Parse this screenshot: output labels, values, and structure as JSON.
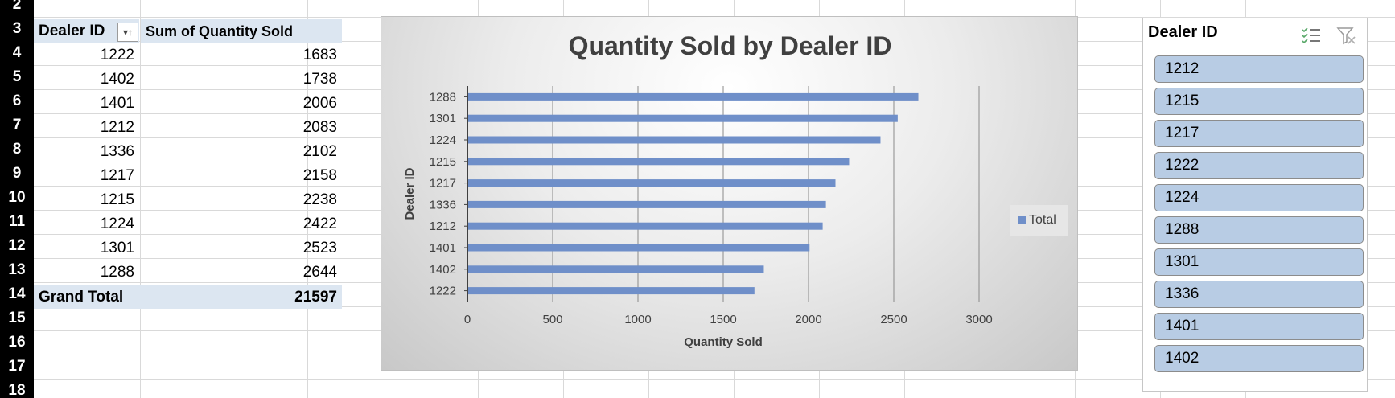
{
  "rows": [
    "2",
    "3",
    "4",
    "5",
    "6",
    "7",
    "8",
    "9",
    "10",
    "11",
    "12",
    "13",
    "14",
    "15",
    "16",
    "17",
    "18"
  ],
  "pivot": {
    "header_row_label": "Dealer ID",
    "header_value": "Sum of Quantity Sold",
    "rows": [
      {
        "dealer": "1222",
        "qty": "1683"
      },
      {
        "dealer": "1402",
        "qty": "1738"
      },
      {
        "dealer": "1401",
        "qty": "2006"
      },
      {
        "dealer": "1212",
        "qty": "2083"
      },
      {
        "dealer": "1336",
        "qty": "2102"
      },
      {
        "dealer": "1217",
        "qty": "2158"
      },
      {
        "dealer": "1215",
        "qty": "2238"
      },
      {
        "dealer": "1224",
        "qty": "2422"
      },
      {
        "dealer": "1301",
        "qty": "2523"
      },
      {
        "dealer": "1288",
        "qty": "2644"
      }
    ],
    "grand_total_label": "Grand Total",
    "grand_total_value": "21597"
  },
  "chart_data": {
    "type": "bar",
    "orientation": "horizontal",
    "title": "Quantity Sold by Dealer ID",
    "xlabel": "Quantity Sold",
    "ylabel": "Dealer ID",
    "categories": [
      "1288",
      "1301",
      "1224",
      "1215",
      "1217",
      "1336",
      "1212",
      "1401",
      "1402",
      "1222"
    ],
    "series": [
      {
        "name": "Total",
        "values": [
          2644,
          2523,
          2422,
          2238,
          2158,
          2102,
          2083,
          2006,
          1738,
          1683
        ]
      }
    ],
    "xlim": [
      0,
      3000
    ],
    "xticks": [
      "0",
      "500",
      "1000",
      "1500",
      "2000",
      "2500",
      "3000"
    ],
    "grid": "vertical",
    "legend": "right",
    "bar_color": "#6f8fc9"
  },
  "slicer": {
    "title": "Dealer ID",
    "multiselect_icon": "multi-select-icon",
    "clear_filter_icon": "clear-filter-icon",
    "items": [
      "1212",
      "1215",
      "1217",
      "1222",
      "1224",
      "1288",
      "1301",
      "1336",
      "1401",
      "1402"
    ]
  }
}
